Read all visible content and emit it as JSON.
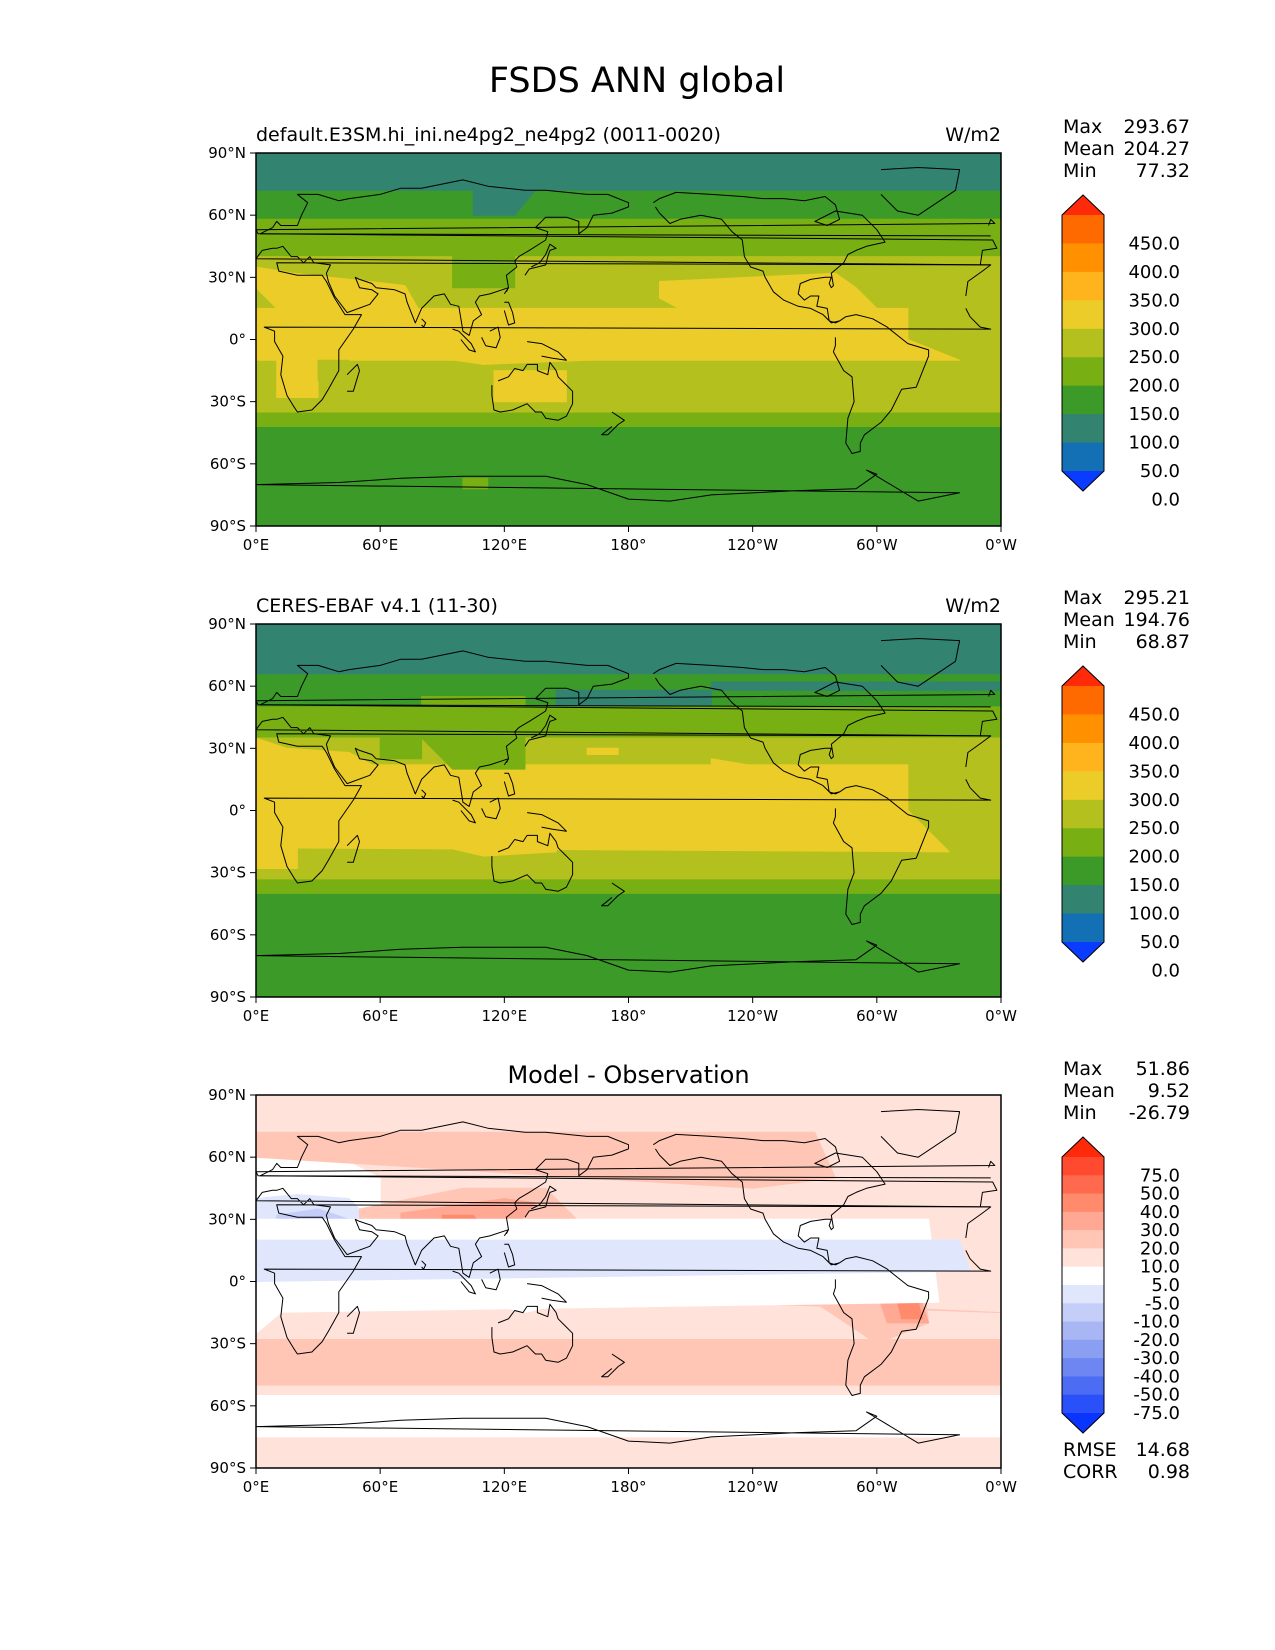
{
  "figure": {
    "title": "FSDS ANN global"
  },
  "axes": {
    "lat_ticks": [
      "90°N",
      "60°N",
      "30°N",
      "0°",
      "30°S",
      "60°S",
      "90°S"
    ],
    "lon_ticks": [
      "0°E",
      "60°E",
      "120°E",
      "180°",
      "120°W",
      "60°W",
      "0°W"
    ]
  },
  "panels": [
    {
      "id": "model",
      "title_left": "default.E3SM.hi_ini.ne4pg2_ne4pg2 (0011-0020)",
      "title_center": "",
      "units": "W/m2",
      "stats": [
        {
          "label": "Max",
          "value": "293.67"
        },
        {
          "label": "Mean",
          "value": "204.27"
        },
        {
          "label": "Min",
          "value": "77.32"
        }
      ],
      "colorbar": {
        "labels": [
          "450.0",
          "400.0",
          "350.0",
          "300.0",
          "250.0",
          "200.0",
          "150.0",
          "100.0",
          "50.0",
          "0.0"
        ],
        "colors": [
          "#ff2a0a",
          "#ff6a00",
          "#ff9000",
          "#ffb41e",
          "#eccc28",
          "#b4c01e",
          "#78b014",
          "#3c9a28",
          "#328470",
          "#1470b4",
          "#0a3cff"
        ]
      }
    },
    {
      "id": "obs",
      "title_left": "CERES-EBAF v4.1 (11-30)",
      "title_center": "",
      "units": "W/m2",
      "stats": [
        {
          "label": "Max",
          "value": "295.21"
        },
        {
          "label": "Mean",
          "value": "194.76"
        },
        {
          "label": "Min",
          "value": "68.87"
        }
      ],
      "colorbar": {
        "labels": [
          "450.0",
          "400.0",
          "350.0",
          "300.0",
          "250.0",
          "200.0",
          "150.0",
          "100.0",
          "50.0",
          "0.0"
        ],
        "colors": [
          "#ff2a0a",
          "#ff6a00",
          "#ff9000",
          "#ffb41e",
          "#eccc28",
          "#b4c01e",
          "#78b014",
          "#3c9a28",
          "#328470",
          "#1470b4",
          "#0a3cff"
        ]
      }
    },
    {
      "id": "diff",
      "title_left": "",
      "title_center": "Model - Observation",
      "units": "",
      "stats": [
        {
          "label": "Max",
          "value": "51.86"
        },
        {
          "label": "Mean",
          "value": "9.52"
        },
        {
          "label": "Min",
          "value": "-26.79"
        }
      ],
      "colorbar": {
        "labels": [
          "75.0",
          "50.0",
          "40.0",
          "30.0",
          "20.0",
          "10.0",
          "5.0",
          "-5.0",
          "-10.0",
          "-20.0",
          "-30.0",
          "-40.0",
          "-50.0",
          "-75.0"
        ],
        "colors": [
          "#ff2a0a",
          "#ff4a30",
          "#ff6a4e",
          "#ff8a6c",
          "#ffa894",
          "#ffc6b6",
          "#ffe2da",
          "#ffffff",
          "#e0e6fc",
          "#c4cef8",
          "#a8b6f4",
          "#8a9ef2",
          "#6d86f2",
          "#4c6cf4",
          "#2a50fa",
          "#0a34ff"
        ]
      },
      "metrics": [
        {
          "label": "RMSE",
          "value": "14.68"
        },
        {
          "label": "CORR",
          "value": "0.98"
        }
      ]
    }
  ],
  "map_fields": {
    "model": {
      "background": "#3c9a28",
      "regions": [
        {
          "color": "#328470",
          "lon": [
            -180,
            180,
            180,
            -180
          ],
          "lat": [
            90,
            90,
            72,
            72
          ]
        },
        {
          "color": "#328470",
          "lon": [
            105,
            125,
            135,
            105
          ],
          "lat": [
            60,
            60,
            72,
            72
          ]
        },
        {
          "color": "#78b014",
          "lon": [
            -180,
            180,
            180,
            -180
          ],
          "lat": [
            58,
            58,
            15,
            15
          ]
        },
        {
          "color": "#78b014",
          "lon": [
            -180,
            180,
            180,
            -180
          ],
          "lat": [
            -28,
            -28,
            -42,
            -42
          ]
        },
        {
          "color": "#b4c01e",
          "lon": [
            -180,
            180,
            180,
            -180
          ],
          "lat": [
            40,
            40,
            -35,
            -35
          ]
        },
        {
          "color": "#eccc28",
          "lon": [
            0,
            18,
            55,
            72,
            80,
            60,
            30,
            10,
            0
          ],
          "lat": [
            35,
            32,
            28,
            26,
            12,
            5,
            5,
            15,
            25
          ]
        },
        {
          "color": "#eccc28",
          "lon": [
            40,
            130,
            160,
            160,
            110,
            60,
            40
          ],
          "lat": [
            8,
            6,
            0,
            -10,
            -12,
            -5,
            -2
          ]
        },
        {
          "color": "#eccc28",
          "lon": [
            -165,
            -80,
            -70,
            -60,
            -90,
            -150,
            -165
          ],
          "lat": [
            28,
            32,
            25,
            15,
            10,
            12,
            20
          ]
        },
        {
          "color": "#eccc28",
          "lon": [
            -45,
            0,
            0,
            -20,
            -45
          ],
          "lat": [
            15,
            15,
            -10,
            -10,
            0
          ]
        },
        {
          "color": "#eccc28",
          "lon": [
            10,
            30,
            30,
            10
          ],
          "lat": [
            -5,
            -5,
            -28,
            -28
          ]
        },
        {
          "color": "#eccc28",
          "lon": [
            115,
            150,
            150,
            115
          ],
          "lat": [
            -15,
            -15,
            -30,
            -30
          ]
        },
        {
          "color": "#b4c01e",
          "lon": [
            30,
            45,
            45,
            30
          ],
          "lat": [
            -10,
            -10,
            -20,
            -20
          ]
        },
        {
          "color": "#78b014",
          "lon": [
            95,
            125,
            125,
            95
          ],
          "lat": [
            45,
            45,
            25,
            25
          ]
        },
        {
          "color": "#78b014",
          "lon": [
            100,
            112,
            112,
            100
          ],
          "lat": [
            -67,
            -67,
            -72,
            -72
          ]
        }
      ]
    },
    "obs": {
      "background": "#3c9a28",
      "regions": [
        {
          "color": "#328470",
          "lon": [
            -180,
            180,
            180,
            -180
          ],
          "lat": [
            90,
            90,
            66,
            66
          ]
        },
        {
          "color": "#328470",
          "lon": [
            145,
            180,
            180,
            -140,
            -140,
            145
          ],
          "lat": [
            58,
            58,
            62,
            62,
            50,
            50
          ]
        },
        {
          "color": "#78b014",
          "lon": [
            -180,
            180,
            180,
            -180
          ],
          "lat": [
            50,
            50,
            18,
            18
          ]
        },
        {
          "color": "#78b014",
          "lon": [
            -180,
            180,
            180,
            -180
          ],
          "lat": [
            -30,
            -30,
            -40,
            -40
          ]
        },
        {
          "color": "#b4c01e",
          "lon": [
            -180,
            180,
            180,
            -180
          ],
          "lat": [
            35,
            35,
            -33,
            -33
          ]
        },
        {
          "color": "#eccc28",
          "lon": [
            0,
            15,
            45,
            60,
            55,
            40,
            20,
            0
          ],
          "lat": [
            35,
            30,
            28,
            20,
            5,
            0,
            0,
            0
          ]
        },
        {
          "color": "#eccc28",
          "lon": [
            0,
            20,
            20,
            0
          ],
          "lat": [
            0,
            0,
            -28,
            -28
          ]
        },
        {
          "color": "#eccc28",
          "lon": [
            60,
            100,
            125,
            150,
            145,
            110,
            80,
            60
          ],
          "lat": [
            0,
            5,
            0,
            -5,
            -20,
            -22,
            -15,
            -5
          ]
        },
        {
          "color": "#eccc28",
          "lon": [
            -140,
            -110,
            -80,
            -65,
            -80,
            -120,
            -140
          ],
          "lat": [
            25,
            20,
            20,
            5,
            -5,
            -5,
            10
          ]
        },
        {
          "color": "#eccc28",
          "lon": [
            -45,
            0,
            0,
            -25,
            -45
          ],
          "lat": [
            22,
            22,
            -18,
            -20,
            0
          ]
        },
        {
          "color": "#78b014",
          "lon": [
            60,
            70,
            80,
            80,
            60
          ],
          "lat": [
            40,
            38,
            35,
            25,
            25
          ]
        },
        {
          "color": "#78b014",
          "lon": [
            80,
            130,
            130,
            95,
            80
          ],
          "lat": [
            55,
            55,
            20,
            20,
            35
          ]
        },
        {
          "color": "#eccc28",
          "lon": [
            160,
            175,
            175,
            160
          ],
          "lat": [
            30,
            30,
            27,
            27
          ]
        }
      ]
    },
    "diff": {
      "background": "#ffe2da",
      "regions": [
        {
          "color": "#ffffff",
          "lon": [
            -180,
            180,
            180,
            -180
          ],
          "lat": [
            -55,
            -55,
            -75,
            -75
          ]
        },
        {
          "color": "#ffc6b6",
          "lon": [
            -180,
            180,
            180,
            -180
          ],
          "lat": [
            -28,
            -28,
            -50,
            -50
          ]
        },
        {
          "color": "#ffffff",
          "lon": [
            0,
            30,
            60,
            60,
            30,
            0
          ],
          "lat": [
            60,
            65,
            50,
            10,
            0,
            -25
          ]
        },
        {
          "color": "#e0e6fc",
          "lon": [
            0,
            20,
            45,
            55,
            40,
            15,
            0
          ],
          "lat": [
            40,
            42,
            40,
            30,
            22,
            15,
            0
          ]
        },
        {
          "color": "#c4cef8",
          "lon": [
            10,
            30,
            45,
            30,
            10
          ],
          "lat": [
            32,
            35,
            30,
            25,
            28
          ]
        },
        {
          "color": "#c4cef8",
          "lon": [
            0,
            8,
            10,
            0
          ],
          "lat": [
            12,
            12,
            -12,
            -12
          ]
        },
        {
          "color": "#ffc6b6",
          "lon": [
            50,
            100,
            140,
            160,
            140,
            100,
            60,
            50
          ],
          "lat": [
            35,
            45,
            45,
            25,
            10,
            15,
            10,
            20
          ]
        },
        {
          "color": "#ffa894",
          "lon": [
            70,
            120,
            135,
            120,
            80,
            70
          ],
          "lat": [
            33,
            40,
            38,
            20,
            18,
            25
          ]
        },
        {
          "color": "#ff8a6c",
          "lon": [
            90,
            105,
            110,
            90
          ],
          "lat": [
            32,
            32,
            25,
            25
          ]
        },
        {
          "color": "#ffffff",
          "lon": [
            90,
            130,
            150,
            130,
            90
          ],
          "lat": [
            5,
            5,
            -10,
            -15,
            -5
          ]
        },
        {
          "color": "#e0e6fc",
          "lon": [
            115,
            130,
            140,
            115
          ],
          "lat": [
            0,
            0,
            -8,
            -8
          ]
        },
        {
          "color": "#ffc6b6",
          "lon": [
            140,
            200,
            220,
            220,
            180,
            140
          ],
          "lat": [
            25,
            28,
            20,
            -10,
            -15,
            -5
          ]
        },
        {
          "color": "#ffa894",
          "lon": [
            150,
            200,
            205,
            150
          ],
          "lat": [
            18,
            18,
            -10,
            -10
          ]
        },
        {
          "color": "#ff8a6c",
          "lon": [
            165,
            190,
            195,
            165
          ],
          "lat": [
            12,
            12,
            -5,
            -5
          ]
        },
        {
          "color": "#ffffff",
          "lon": [
            200,
            210,
            210,
            200
          ],
          "lat": [
            8,
            8,
            0,
            0
          ]
        },
        {
          "color": "#ffc6b6",
          "lon": [
            -180,
            -90,
            -80,
            -120,
            -180
          ],
          "lat": [
            72,
            72,
            50,
            45,
            60
          ]
        },
        {
          "color": "#ffc6b6",
          "lon": [
            -90,
            -40,
            -35,
            -60,
            -90
          ],
          "lat": [
            25,
            20,
            -20,
            -30,
            -10
          ]
        },
        {
          "color": "#ffa894",
          "lon": [
            -60,
            -40,
            -35,
            -55
          ],
          "lat": [
            -5,
            -5,
            -20,
            -20
          ]
        },
        {
          "color": "#ff8a6c",
          "lon": [
            -50,
            -40,
            -38,
            -48
          ],
          "lat": [
            -10,
            -10,
            -18,
            -18
          ]
        },
        {
          "color": "#ffffff",
          "lon": [
            -35,
            0,
            0,
            -30
          ],
          "lat": [
            30,
            30,
            -15,
            -10
          ]
        },
        {
          "color": "#e0e6fc",
          "lon": [
            -20,
            0,
            0,
            -15
          ],
          "lat": [
            20,
            20,
            0,
            5
          ]
        },
        {
          "color": "#ffffff",
          "lon": [
            -60,
            -30,
            -30,
            -60
          ],
          "lat": [
            -55,
            -55,
            -75,
            -75
          ]
        }
      ]
    }
  }
}
